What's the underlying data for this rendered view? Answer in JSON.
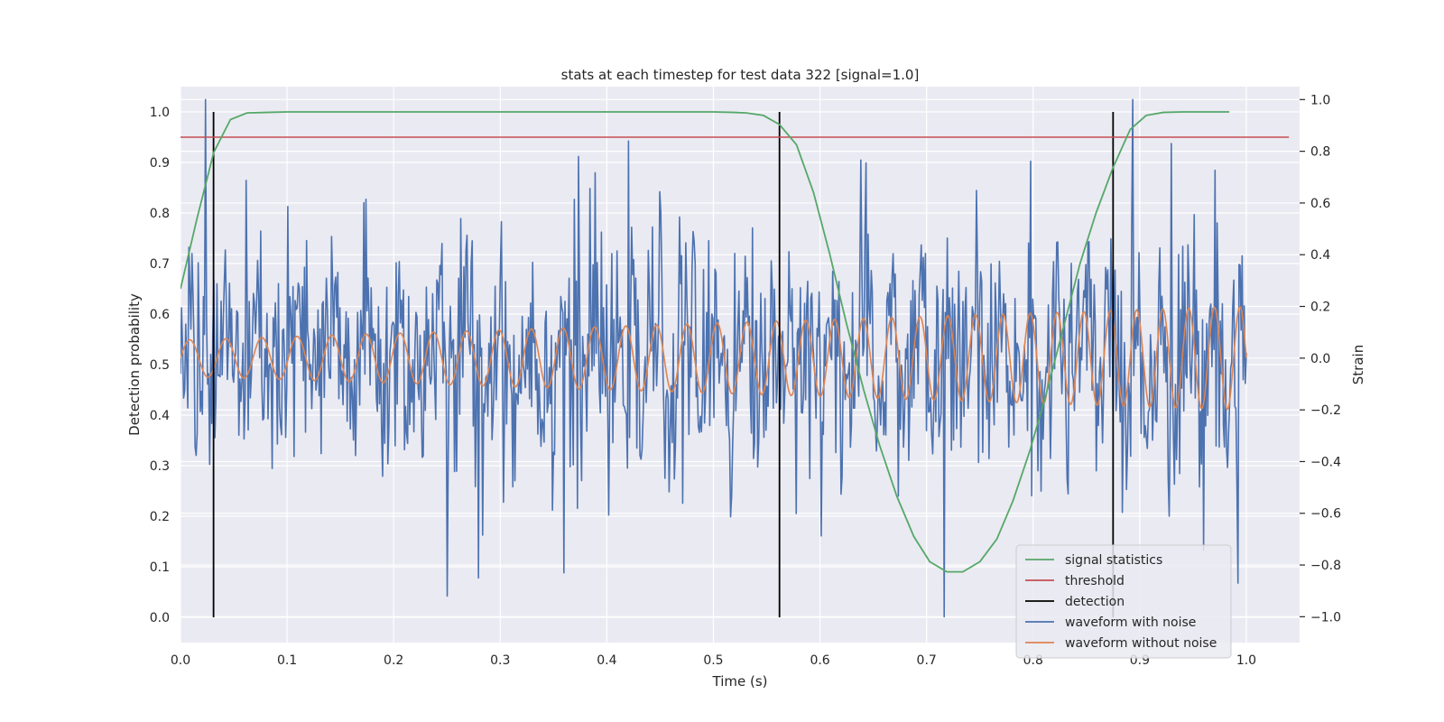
{
  "chart_data": {
    "type": "line",
    "title": "stats at each timestep for test data 322 [signal=1.0]",
    "xlabel": "Time (s)",
    "ylabel": "Detection probability",
    "y2label": "Strain",
    "xlim": [
      0.0,
      1.05
    ],
    "ylim": [
      -0.05,
      1.05
    ],
    "y2lim": [
      -1.1,
      1.05
    ],
    "xticks": [
      0.0,
      0.1,
      0.2,
      0.3,
      0.4,
      0.5,
      0.6,
      0.7,
      0.8,
      0.9,
      1.0
    ],
    "xtick_labels": [
      "0.0",
      "0.1",
      "0.2",
      "0.3",
      "0.4",
      "0.5",
      "0.6",
      "0.7",
      "0.8",
      "0.9",
      "1.0"
    ],
    "yticks": [
      0.0,
      0.1,
      0.2,
      0.3,
      0.4,
      0.5,
      0.6,
      0.7,
      0.8,
      0.9,
      1.0
    ],
    "ytick_labels": [
      "0.0",
      "0.1",
      "0.2",
      "0.3",
      "0.4",
      "0.5",
      "0.6",
      "0.7",
      "0.8",
      "0.9",
      "1.0"
    ],
    "y2ticks": [
      -1.0,
      -0.8,
      -0.6,
      -0.4,
      -0.2,
      0.0,
      0.2,
      0.4,
      0.6,
      0.8,
      1.0
    ],
    "y2tick_labels": [
      "−1.0",
      "−0.8",
      "−0.6",
      "−0.4",
      "−0.2",
      "0.0",
      "0.2",
      "0.4",
      "0.6",
      "0.8",
      "1.0"
    ],
    "grid": true,
    "legend_position": "bottom-right",
    "legend": [
      {
        "label": "signal statistics",
        "color": "#55a868"
      },
      {
        "label": "threshold",
        "color": "#c44e52"
      },
      {
        "label": "detection",
        "color": "#000000"
      },
      {
        "label": "waveform with noise",
        "color": "#4c72b0"
      },
      {
        "label": "waveform without noise",
        "color": "#dd8452"
      }
    ],
    "series": [
      {
        "name": "signal statistics",
        "axis": "left",
        "color": "#55a868",
        "x": [
          0.0,
          0.0156,
          0.0312,
          0.0469,
          0.0625,
          0.08,
          0.1,
          0.2,
          0.3,
          0.4,
          0.5,
          0.52,
          0.531,
          0.547,
          0.562,
          0.578,
          0.594,
          0.609,
          0.625,
          0.641,
          0.656,
          0.672,
          0.688,
          0.703,
          0.719,
          0.734,
          0.75,
          0.766,
          0.781,
          0.797,
          0.812,
          0.828,
          0.844,
          0.859,
          0.875,
          0.891,
          0.906,
          0.922,
          0.94,
          0.984
        ],
        "y": [
          0.65,
          0.79,
          0.92,
          0.985,
          0.998,
          0.999,
          1.0,
          1.0,
          1.0,
          1.0,
          1.0,
          0.999,
          0.998,
          0.993,
          0.975,
          0.935,
          0.84,
          0.72,
          0.58,
          0.45,
          0.34,
          0.24,
          0.16,
          0.11,
          0.09,
          0.09,
          0.11,
          0.155,
          0.23,
          0.33,
          0.44,
          0.57,
          0.7,
          0.8,
          0.89,
          0.965,
          0.993,
          0.999,
          1.0,
          1.0
        ]
      },
      {
        "name": "threshold",
        "axis": "left",
        "color": "#c44e52",
        "x": [
          0.0,
          1.04
        ],
        "y": [
          0.95,
          0.95
        ]
      },
      {
        "name": "waveform with noise",
        "axis": "right",
        "color": "#4c72b0",
        "samples": 1024,
        "sigma_approx": 0.23,
        "x_range": [
          0.0,
          1.0
        ],
        "y_range": [
          -1.0,
          1.0
        ],
        "notable_points": [
          {
            "x": 0.023,
            "y": 1.0
          },
          {
            "x": 0.25,
            "y": -0.92
          },
          {
            "x": 0.28,
            "y": -0.85
          },
          {
            "x": 0.36,
            "y": -0.83
          },
          {
            "x": 0.373,
            "y": 0.78
          },
          {
            "x": 0.717,
            "y": -1.0
          },
          {
            "x": 0.93,
            "y": 0.83
          },
          {
            "x": 0.992,
            "y": -0.87
          }
        ]
      },
      {
        "name": "waveform without noise",
        "axis": "right",
        "color": "#dd8452",
        "function": "chirp",
        "amplitude_start": 0.07,
        "amplitude_end": 0.2,
        "frequency_start_hz": 29,
        "frequency_end_hz": 42,
        "x_range": [
          0.0,
          1.0
        ]
      }
    ],
    "detections": [
      0.031,
      0.562,
      0.875
    ]
  }
}
